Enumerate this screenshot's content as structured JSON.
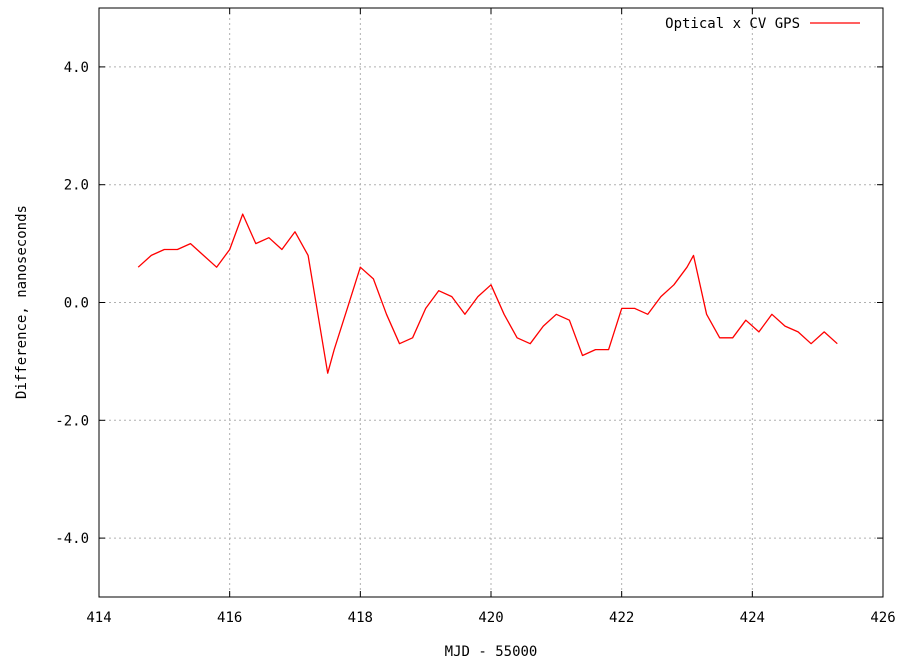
{
  "chart_data": {
    "type": "line",
    "title": "",
    "xlabel": "MJD - 55000",
    "ylabel": "Difference, nanoseconds",
    "xlim": [
      414,
      426
    ],
    "ylim": [
      -5,
      5
    ],
    "x_ticks": [
      414,
      416,
      418,
      420,
      422,
      424,
      426
    ],
    "x_tick_labels": [
      "414",
      "416",
      "418",
      "420",
      "422",
      "424",
      "426"
    ],
    "y_ticks": [
      -4,
      -2,
      0,
      2,
      4
    ],
    "y_tick_labels": [
      "-4.0",
      "-2.0",
      "0.0",
      "2.0",
      "4.0"
    ],
    "grid": true,
    "legend_position": "top-right",
    "series": [
      {
        "name": "Optical x CV GPS",
        "color": "#ff0000",
        "x": [
          414.6,
          414.8,
          415.0,
          415.2,
          415.4,
          415.6,
          415.8,
          416.0,
          416.2,
          416.4,
          416.6,
          416.8,
          417.0,
          417.2,
          417.35,
          417.5,
          417.6,
          417.8,
          418.0,
          418.2,
          418.4,
          418.6,
          418.8,
          419.0,
          419.2,
          419.4,
          419.6,
          419.8,
          420.0,
          420.2,
          420.4,
          420.6,
          420.8,
          421.0,
          421.2,
          421.4,
          421.6,
          421.8,
          422.0,
          422.2,
          422.4,
          422.6,
          422.8,
          423.0,
          423.1,
          423.3,
          423.5,
          423.7,
          423.9,
          424.1,
          424.3,
          424.5,
          424.7,
          424.9,
          425.1,
          425.3
        ],
        "y": [
          0.6,
          0.8,
          0.9,
          0.9,
          1.0,
          0.8,
          0.6,
          0.9,
          1.5,
          1.0,
          1.1,
          0.9,
          1.2,
          0.8,
          -0.2,
          -1.2,
          -0.8,
          -0.1,
          0.6,
          0.4,
          -0.2,
          -0.7,
          -0.6,
          -0.1,
          0.2,
          0.1,
          -0.2,
          0.1,
          0.3,
          -0.2,
          -0.6,
          -0.7,
          -0.4,
          -0.2,
          -0.3,
          -0.9,
          -0.8,
          -0.8,
          -0.1,
          -0.1,
          -0.2,
          0.1,
          0.3,
          0.6,
          0.8,
          -0.2,
          -0.6,
          -0.6,
          -0.3,
          -0.5,
          -0.2,
          -0.4,
          -0.5,
          -0.7,
          -0.5,
          -0.7
        ]
      }
    ]
  }
}
